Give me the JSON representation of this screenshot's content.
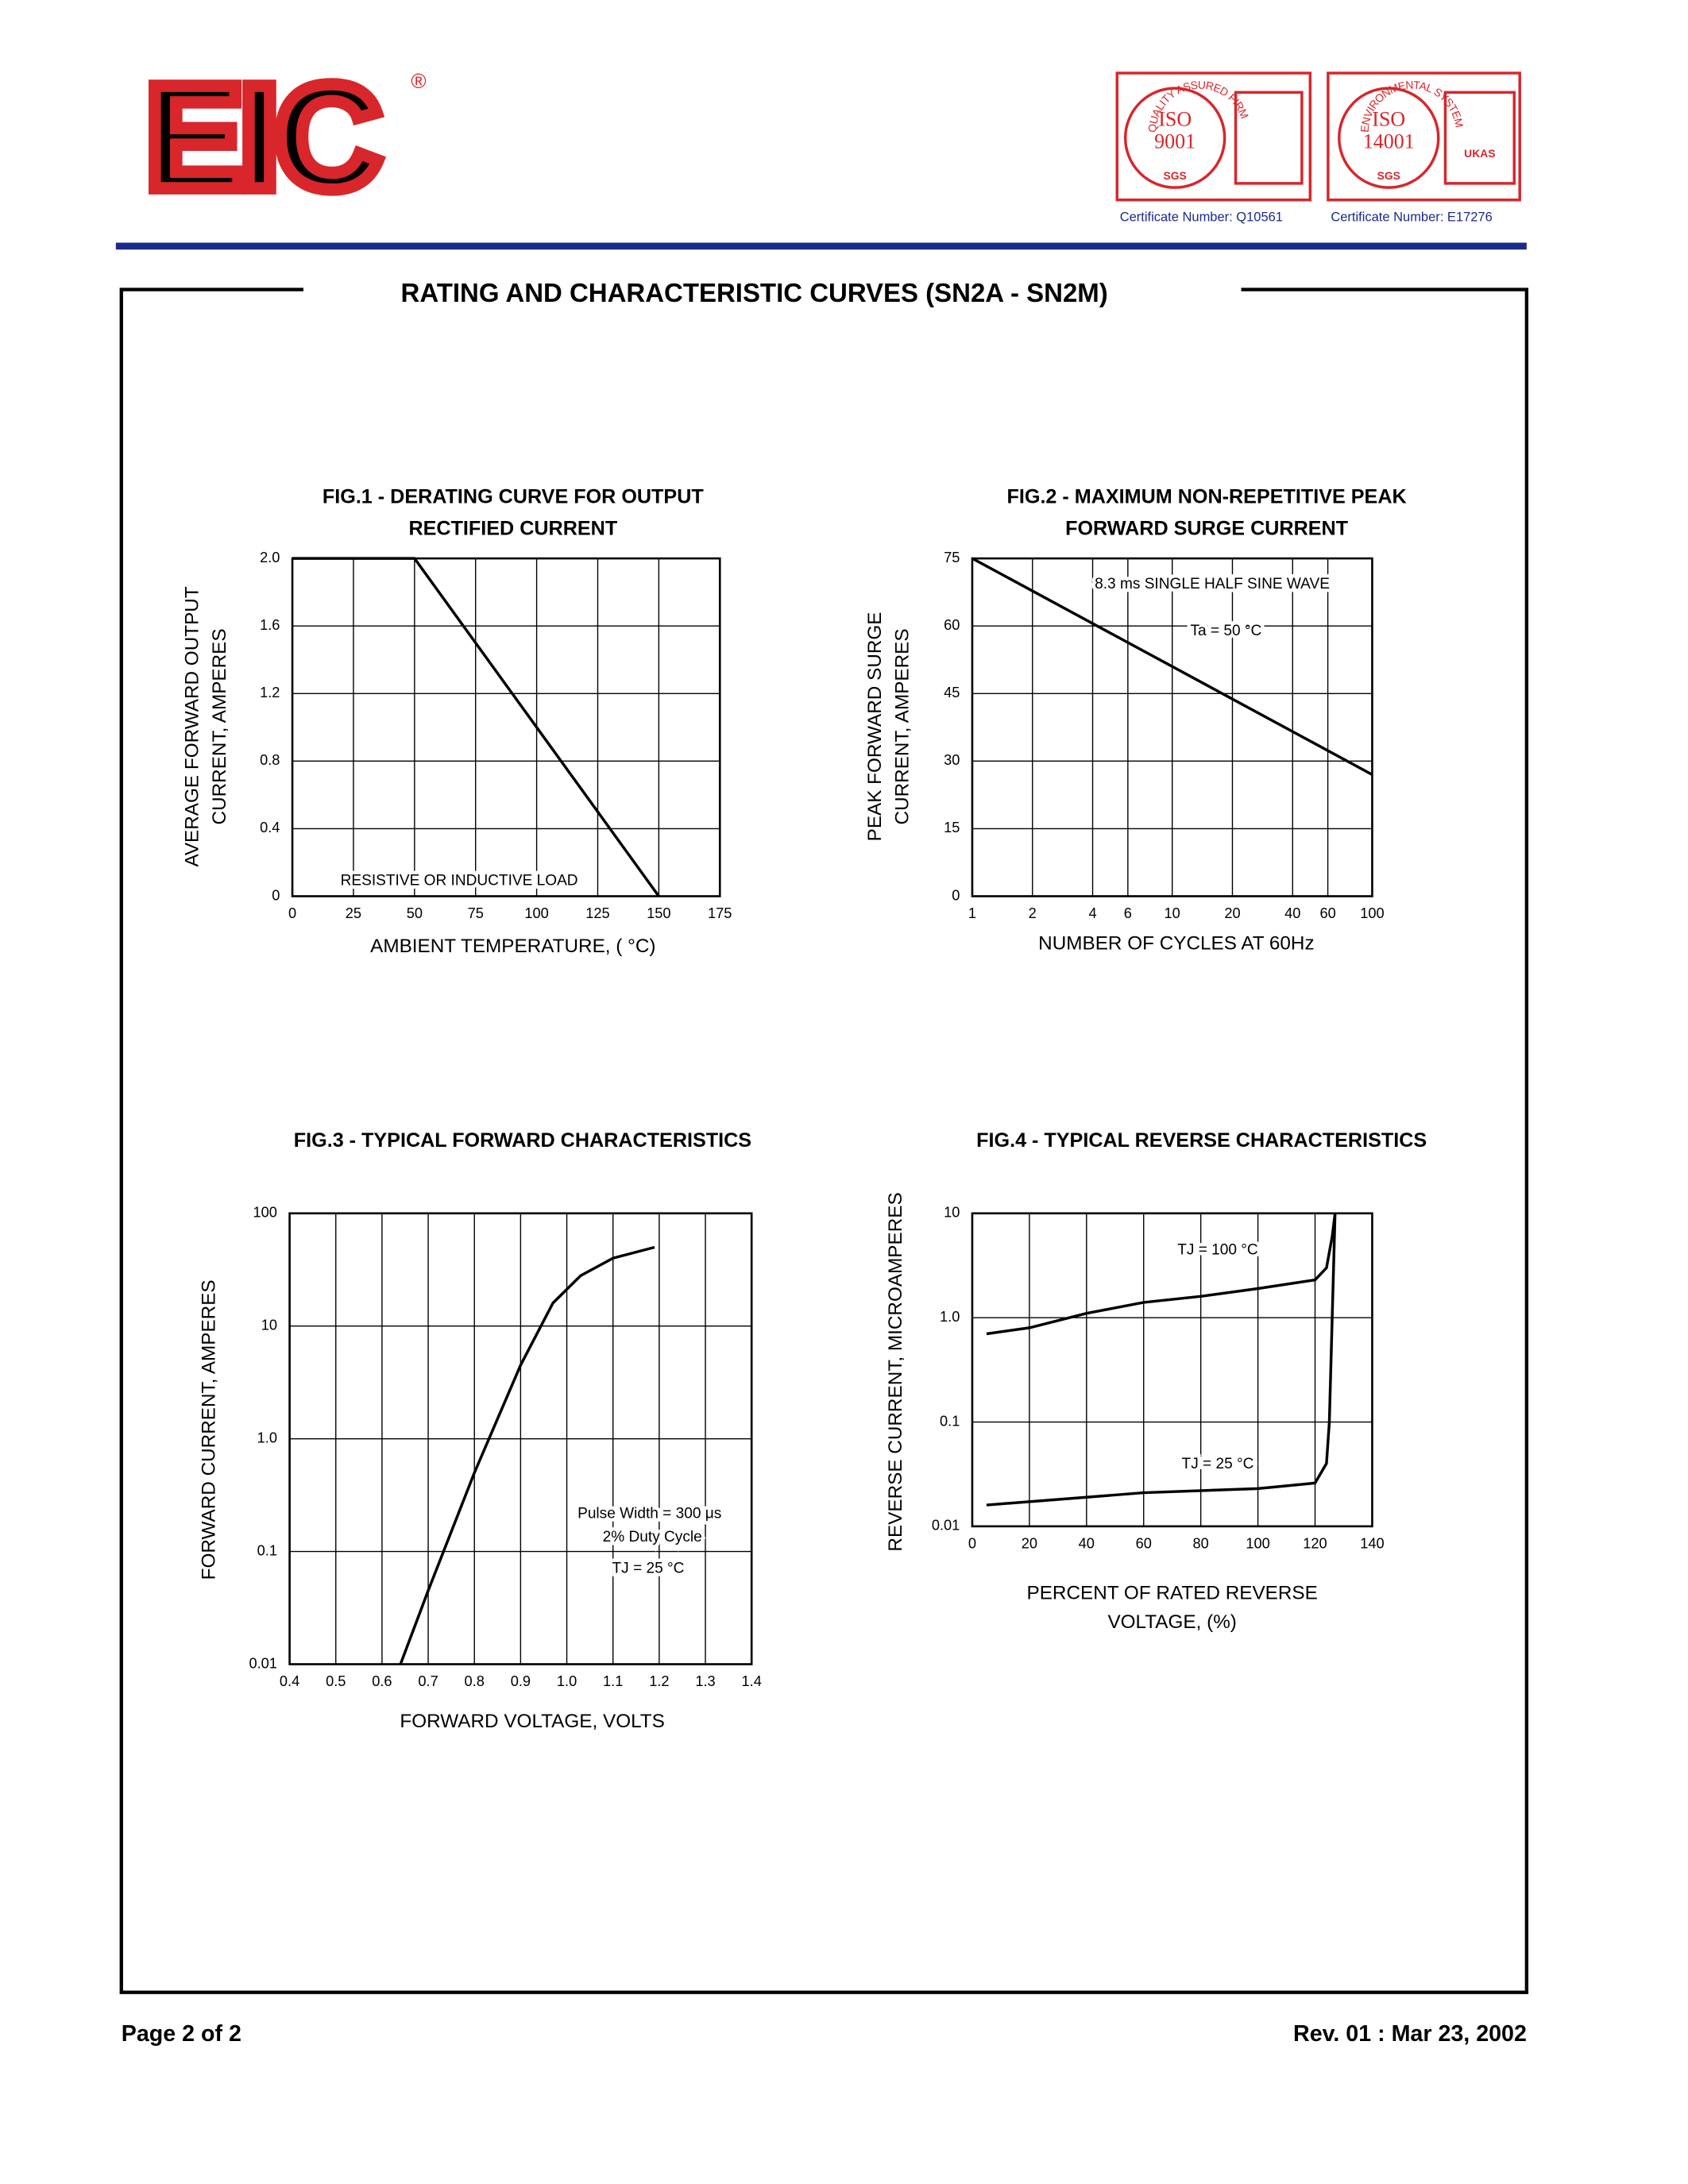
{
  "header": {
    "logo": "EIC",
    "registered": "®",
    "certificates": [
      {
        "arc": "QUALITY ASSURED FIRM",
        "badge": [
          "ISO",
          "9001"
        ],
        "mark": "SGS",
        "number": "Certificate Number: Q10561"
      },
      {
        "arc": "ENVIRONMENTAL SYSTEM",
        "badge": [
          "ISO",
          "14001"
        ],
        "mark": "SGS",
        "accreditor": "UKAS",
        "number": "Certificate Number: E17276"
      }
    ]
  },
  "page_title": "RATING AND CHARACTERISTIC CURVES (SN2A - SN2M)",
  "chart_data": [
    {
      "type": "line",
      "title": [
        "FIG.1 - DERATING CURVE FOR OUTPUT",
        "RECTIFIED CURRENT"
      ],
      "ylabel": [
        "AVERAGE FORWARD OUTPUT",
        "CURRENT, AMPERES"
      ],
      "xlabel": [
        "AMBIENT TEMPERATURE, ( °C)"
      ],
      "x": [
        0,
        50,
        150
      ],
      "values": [
        2,
        2,
        0
      ],
      "color": "#000000",
      "xlim": [
        0,
        175
      ],
      "ylim": [
        0,
        2
      ],
      "xticks": [
        0,
        25,
        50,
        75,
        100,
        125,
        150,
        175
      ],
      "yticks": [
        0,
        0.4,
        0.8,
        1.2,
        1.6,
        {
          "value": 2,
          "label": "2.0"
        }
      ],
      "grid": true,
      "annotations": [
        "RESISTIVE OR INDUCTIVE LOAD"
      ]
    },
    {
      "type": "line",
      "title": [
        "FIG.2 - MAXIMUM NON-REPETITIVE PEAK",
        "FORWARD SURGE CURRENT"
      ],
      "ylabel": [
        "PEAK FORWARD SURGE",
        "CURRENT, AMPERES"
      ],
      "xlabel": [
        "NUMBER OF CYCLES AT 60Hz"
      ],
      "x": [
        1,
        100
      ],
      "values": [
        75,
        27
      ],
      "color": "#000000",
      "xscale": "log",
      "xlim": [
        1,
        100
      ],
      "ylim": [
        0,
        75
      ],
      "xticks": [
        1,
        2,
        4,
        6,
        10,
        20,
        40,
        60,
        100
      ],
      "yticks": [
        0,
        15,
        30,
        45,
        60,
        75
      ],
      "grid": true,
      "annotations": [
        "8.3 ms SINGLE HALF SINE WAVE",
        "Ta = 50 °C"
      ]
    },
    {
      "type": "line",
      "title": [
        "FIG.3 - TYPICAL FORWARD  CHARACTERISTICS"
      ],
      "ylabel": [
        "FORWARD CURRENT, AMPERES"
      ],
      "xlabel": [
        "FORWARD VOLTAGE, VOLTS"
      ],
      "x": [
        0.64,
        0.7,
        0.8,
        0.9,
        0.97,
        1.03,
        1.1,
        1.19
      ],
      "values": [
        0.01,
        0.045,
        0.5,
        4.5,
        16,
        28,
        40,
        50
      ],
      "color": "#000000",
      "yscale": "log",
      "xlim": [
        0.4,
        1.4
      ],
      "ylim": [
        0.01,
        100
      ],
      "xticks": [
        0.4,
        0.5,
        0.6,
        0.7,
        0.8,
        0.9,
        {
          "value": 1,
          "label": "1.0"
        },
        1.1,
        1.2,
        1.3,
        1.4
      ],
      "yticks": [
        0.01,
        0.1,
        {
          "value": 1,
          "label": "1.0"
        },
        10,
        100
      ],
      "grid": true,
      "annotations": [
        "Pulse Width = 300 μs",
        "2% Duty Cycle",
        "TJ = 25 °C"
      ]
    },
    {
      "type": "line",
      "title": [
        "FIG.4 - TYPICAL REVERSE CHARACTERISTICS"
      ],
      "ylabel": [
        "REVERSE CURRENT, MICROAMPERES"
      ],
      "xlabel": [
        "PERCENT OF RATED REVERSE",
        "VOLTAGE, (%)"
      ],
      "yscale": "log",
      "xlim": [
        0,
        140
      ],
      "ylim": [
        0.01,
        10
      ],
      "xticks": [
        0,
        20,
        40,
        60,
        80,
        100,
        120,
        140
      ],
      "yticks": [
        0.01,
        0.1,
        {
          "value": 1,
          "label": "1.0"
        },
        10
      ],
      "grid": true,
      "series": [
        {
          "name": "TJ = 100 °C",
          "color": "#000000",
          "x": [
            5,
            20,
            40,
            60,
            80,
            100,
            120,
            124,
            126,
            127
          ],
          "values": [
            0.7,
            0.8,
            1.1,
            1.4,
            1.6,
            1.9,
            2.3,
            3,
            6,
            10
          ]
        },
        {
          "name": "TJ = 25 °C",
          "color": "#000000",
          "x": [
            5,
            40,
            60,
            100,
            120,
            124,
            125,
            126,
            127
          ],
          "values": [
            0.016,
            0.019,
            0.021,
            0.023,
            0.026,
            0.04,
            0.1,
            1,
            10
          ]
        }
      ]
    }
  ],
  "footer": {
    "page": "Page 2 of 2",
    "revision": "Rev. 01 : Mar 23, 2002"
  }
}
